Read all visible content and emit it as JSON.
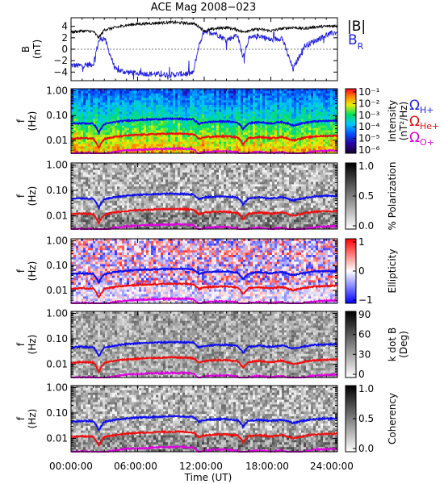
{
  "title": "ACE Mag 2008−023",
  "colors": {
    "btotal": "#000000",
    "br": "#2020dd",
    "h_line": "#1010ee",
    "he_line": "#ee1010",
    "o_line": "#e000e0",
    "h_label": "#2222dd",
    "he_label": "#dd1111",
    "o_label": "#dd00dd"
  },
  "legend": {
    "btotal": "|B|",
    "br": "B",
    "br_sub": "R",
    "h_omega": "Ω",
    "h_sub": "H+",
    "he_omega": "Ω",
    "he_sub": "He+",
    "o_omega": "Ω",
    "o_sub": "O+"
  },
  "x_axis": {
    "label": "Time (UT)",
    "ticks": [
      "00:00:00",
      "06:00:00",
      "12:00:00",
      "18:00:00",
      "24:00:00"
    ]
  },
  "panels": [
    {
      "id": "mag",
      "ylabel1": "B",
      "ylabel2": "(nT)",
      "yticks": [
        "4",
        "2",
        "0",
        "−2",
        "−4"
      ]
    },
    {
      "id": "intensity",
      "ylabel1": "f",
      "ylabel2": "(Hz)",
      "yticks": [
        "1.00",
        "0.10",
        "0.01"
      ],
      "cbar_label": "Intensity",
      "cbar_label2": "(nT²/Hz)",
      "cbar_ticks": [
        "10⁻¹",
        "10⁻²",
        "10⁻³",
        "10⁻⁴",
        "10⁻⁵",
        "10⁻⁶"
      ]
    },
    {
      "id": "polarization",
      "ylabel1": "f",
      "ylabel2": "(Hz)",
      "yticks": [
        "1.00",
        "0.10",
        "0.01"
      ],
      "cbar_label": "% Polarization",
      "cbar_ticks": [
        "1.0",
        "0.5",
        "0.0"
      ]
    },
    {
      "id": "ellipticity",
      "ylabel1": "f",
      "ylabel2": "(Hz)",
      "yticks": [
        "1.00",
        "0.10",
        "0.01"
      ],
      "cbar_label": "Ellipticity",
      "cbar_ticks": [
        "1",
        "0",
        "−1"
      ]
    },
    {
      "id": "kdotb",
      "ylabel1": "f",
      "ylabel2": "(Hz)",
      "yticks": [
        "1.00",
        "0.10",
        "0.01"
      ],
      "cbar_label": "k dot B",
      "cbar_label2": "(Deg)",
      "cbar_ticks": [
        "90",
        "60",
        "30",
        "0"
      ]
    },
    {
      "id": "coherency",
      "ylabel1": "f",
      "ylabel2": "(Hz)",
      "yticks": [
        "1.00",
        "0.10",
        "0.01"
      ],
      "cbar_label": "Coherency",
      "cbar_ticks": [
        "1.0",
        "0.5",
        "0.0"
      ]
    }
  ],
  "chart_data": {
    "type": "line",
    "title": "ACE Mag 2008−023",
    "xlabel": "Time (UT)",
    "xlim": [
      0,
      24
    ],
    "mag_ylim": [
      -5.5,
      5.5
    ],
    "freq_ylim": [
      0.003,
      1.2
    ],
    "x": [
      0,
      1,
      2,
      2.5,
      3,
      4,
      5,
      6,
      7,
      8,
      9,
      10,
      11,
      11.5,
      12,
      13,
      14,
      15,
      15.5,
      16,
      17,
      18,
      19,
      20,
      21,
      22,
      23,
      24
    ],
    "series": [
      {
        "name": "|B|",
        "values": [
          3.0,
          3.2,
          3.1,
          2.0,
          3.4,
          3.8,
          4.2,
          4.4,
          4.5,
          4.6,
          4.7,
          4.6,
          4.5,
          4.0,
          3.2,
          3.6,
          3.8,
          3.4,
          3.0,
          3.3,
          3.5,
          3.2,
          3.6,
          3.8,
          3.6,
          3.9,
          4.0,
          4.1
        ]
      },
      {
        "name": "B",
        "values": [
          -2.8,
          -2.9,
          -2.6,
          1.5,
          2.0,
          -3.6,
          -4.0,
          -4.2,
          -4.3,
          -4.4,
          -4.5,
          -4.3,
          -4.2,
          0.5,
          3.2,
          2.8,
          1.6,
          2.5,
          -1.5,
          1.8,
          2.4,
          1.6,
          2.0,
          -3.5,
          0.5,
          1.5,
          2.5,
          3.0
        ]
      },
      {
        "name": "ΩH+",
        "values": [
          0.046,
          0.049,
          0.047,
          0.02,
          0.045,
          0.055,
          0.062,
          0.066,
          0.069,
          0.072,
          0.074,
          0.073,
          0.07,
          0.045,
          0.053,
          0.057,
          0.058,
          0.052,
          0.028,
          0.049,
          0.054,
          0.048,
          0.055,
          0.04,
          0.05,
          0.058,
          0.06,
          0.062
        ]
      },
      {
        "name": "ΩHe+",
        "values": [
          0.0115,
          0.0123,
          0.0118,
          0.005,
          0.0113,
          0.0138,
          0.0155,
          0.0165,
          0.0173,
          0.018,
          0.0185,
          0.0183,
          0.0175,
          0.0113,
          0.0133,
          0.0143,
          0.0145,
          0.013,
          0.007,
          0.0123,
          0.0135,
          0.012,
          0.0138,
          0.01,
          0.0125,
          0.0145,
          0.015,
          0.0155
        ]
      },
      {
        "name": "ΩO+",
        "values": [
          0.0029,
          0.0031,
          0.003,
          0.0013,
          0.0028,
          0.0034,
          0.0039,
          0.0041,
          0.0043,
          0.0045,
          0.0046,
          0.0046,
          0.0044,
          0.0028,
          0.0033,
          0.0036,
          0.0036,
          0.0033,
          0.0018,
          0.0031,
          0.0034,
          0.003,
          0.0034,
          0.0025,
          0.0031,
          0.0036,
          0.0038,
          0.0039
        ]
      }
    ]
  }
}
